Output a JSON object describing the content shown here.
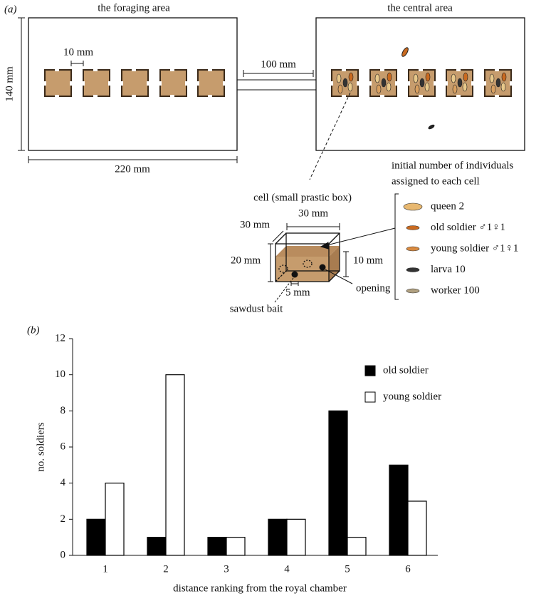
{
  "diagram": {
    "panel_label": "(a)",
    "foraging_title": "the foraging area",
    "central_title": "the central area",
    "height_label": "140 mm",
    "width_label": "220 mm",
    "gap_label": "10 mm",
    "corridor_label": "100 mm",
    "cell_title": "cell (small prastic box)",
    "cell_depth": "30 mm",
    "cell_width": "30 mm",
    "cell_height": "20 mm",
    "sawdust_height": "10 mm",
    "hole_label": "5 mm",
    "opening_label": "opening",
    "bait_label": "sawdust bait",
    "legend_title": [
      "initial number of individuals",
      "assigned to each cell"
    ],
    "legend_items": [
      "queen 2",
      "old soldier ♂1♀1",
      "young soldier ♂1♀1",
      "larva 10",
      "worker 100"
    ]
  },
  "chart_data": {
    "type": "bar",
    "panel_label": "(b)",
    "x_label": "distance ranking from the royal chamber",
    "y_label": "no. soldiers",
    "categories": [
      "1",
      "2",
      "3",
      "4",
      "5",
      "6"
    ],
    "series": [
      {
        "name": "old soldier",
        "color": "#000000",
        "values": [
          2,
          1,
          1,
          2,
          8,
          5
        ]
      },
      {
        "name": "young soldier",
        "color": "#ffffff",
        "values": [
          4,
          10,
          1,
          2,
          1,
          3
        ]
      }
    ],
    "ylim": [
      0,
      12
    ],
    "yticks": [
      0,
      2,
      4,
      6,
      8,
      10,
      12
    ],
    "grid": false,
    "legend": "upper right"
  }
}
